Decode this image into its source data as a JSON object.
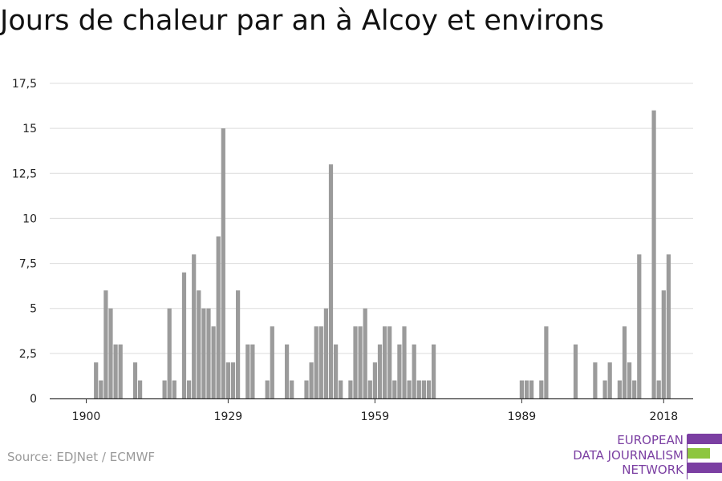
{
  "title": "Jours de chaleur par an à Alcoy et environs",
  "source": "Source: EDJNet / ECMWF",
  "logo": {
    "line1": "EUROPEAN",
    "line2": "DATA JOURNALISM",
    "line3": "NETWORK",
    "colors": [
      "#7b3fa2",
      "#8dc63f",
      "#7b3fa2"
    ]
  },
  "chart_data": {
    "type": "bar",
    "title": "Jours de chaleur par an à Alcoy et environs",
    "xlabel": "",
    "ylabel": "",
    "ylim": [
      0,
      17.5
    ],
    "yticks": [
      "0",
      "2,5",
      "5",
      "7,5",
      "10",
      "12,5",
      "15",
      "17,5"
    ],
    "ytick_values": [
      0,
      2.5,
      5,
      7.5,
      10,
      12.5,
      15,
      17.5
    ],
    "xticks": [
      1900,
      1929,
      1959,
      1989,
      2018
    ],
    "grid": true,
    "bar_color": "#9b9b9b",
    "x": [
      1900,
      1901,
      1902,
      1903,
      1904,
      1905,
      1906,
      1907,
      1908,
      1909,
      1910,
      1911,
      1912,
      1913,
      1914,
      1915,
      1916,
      1917,
      1918,
      1919,
      1920,
      1921,
      1922,
      1923,
      1924,
      1925,
      1926,
      1927,
      1928,
      1929,
      1930,
      1931,
      1932,
      1933,
      1934,
      1935,
      1936,
      1937,
      1938,
      1939,
      1940,
      1941,
      1942,
      1943,
      1944,
      1945,
      1946,
      1947,
      1948,
      1949,
      1950,
      1951,
      1952,
      1953,
      1954,
      1955,
      1956,
      1957,
      1958,
      1959,
      1960,
      1961,
      1962,
      1963,
      1964,
      1965,
      1966,
      1967,
      1968,
      1969,
      1970,
      1971,
      1972,
      1973,
      1974,
      1975,
      1976,
      1977,
      1978,
      1979,
      1980,
      1981,
      1982,
      1983,
      1984,
      1985,
      1986,
      1987,
      1988,
      1989,
      1990,
      1991,
      1992,
      1993,
      1994,
      1995,
      1996,
      1997,
      1998,
      1999,
      2000,
      2001,
      2002,
      2003,
      2004,
      2005,
      2006,
      2007,
      2008,
      2009,
      2010,
      2011,
      2012,
      2013,
      2014,
      2015,
      2016,
      2017,
      2018,
      2019
    ],
    "values": [
      0,
      0,
      2,
      1,
      6,
      5,
      3,
      3,
      0,
      0,
      2,
      1,
      0,
      0,
      0,
      0,
      1,
      5,
      1,
      0,
      7,
      1,
      8,
      6,
      5,
      5,
      4,
      9,
      15,
      2,
      2,
      6,
      0,
      3,
      3,
      0,
      0,
      1,
      4,
      0,
      0,
      3,
      1,
      0,
      0,
      1,
      2,
      4,
      4,
      5,
      13,
      3,
      1,
      0,
      1,
      4,
      4,
      5,
      1,
      2,
      3,
      4,
      4,
      1,
      3,
      4,
      1,
      3,
      1,
      1,
      1,
      3,
      0,
      0,
      0,
      0,
      0,
      0,
      0,
      0,
      0,
      0,
      0,
      0,
      0,
      0,
      0,
      0,
      0,
      1,
      1,
      1,
      0,
      1,
      4,
      0,
      0,
      0,
      0,
      0,
      3,
      0,
      0,
      0,
      2,
      0,
      1,
      2,
      0,
      1,
      4,
      2,
      1,
      8,
      0,
      0,
      16,
      1,
      6,
      8
    ]
  }
}
